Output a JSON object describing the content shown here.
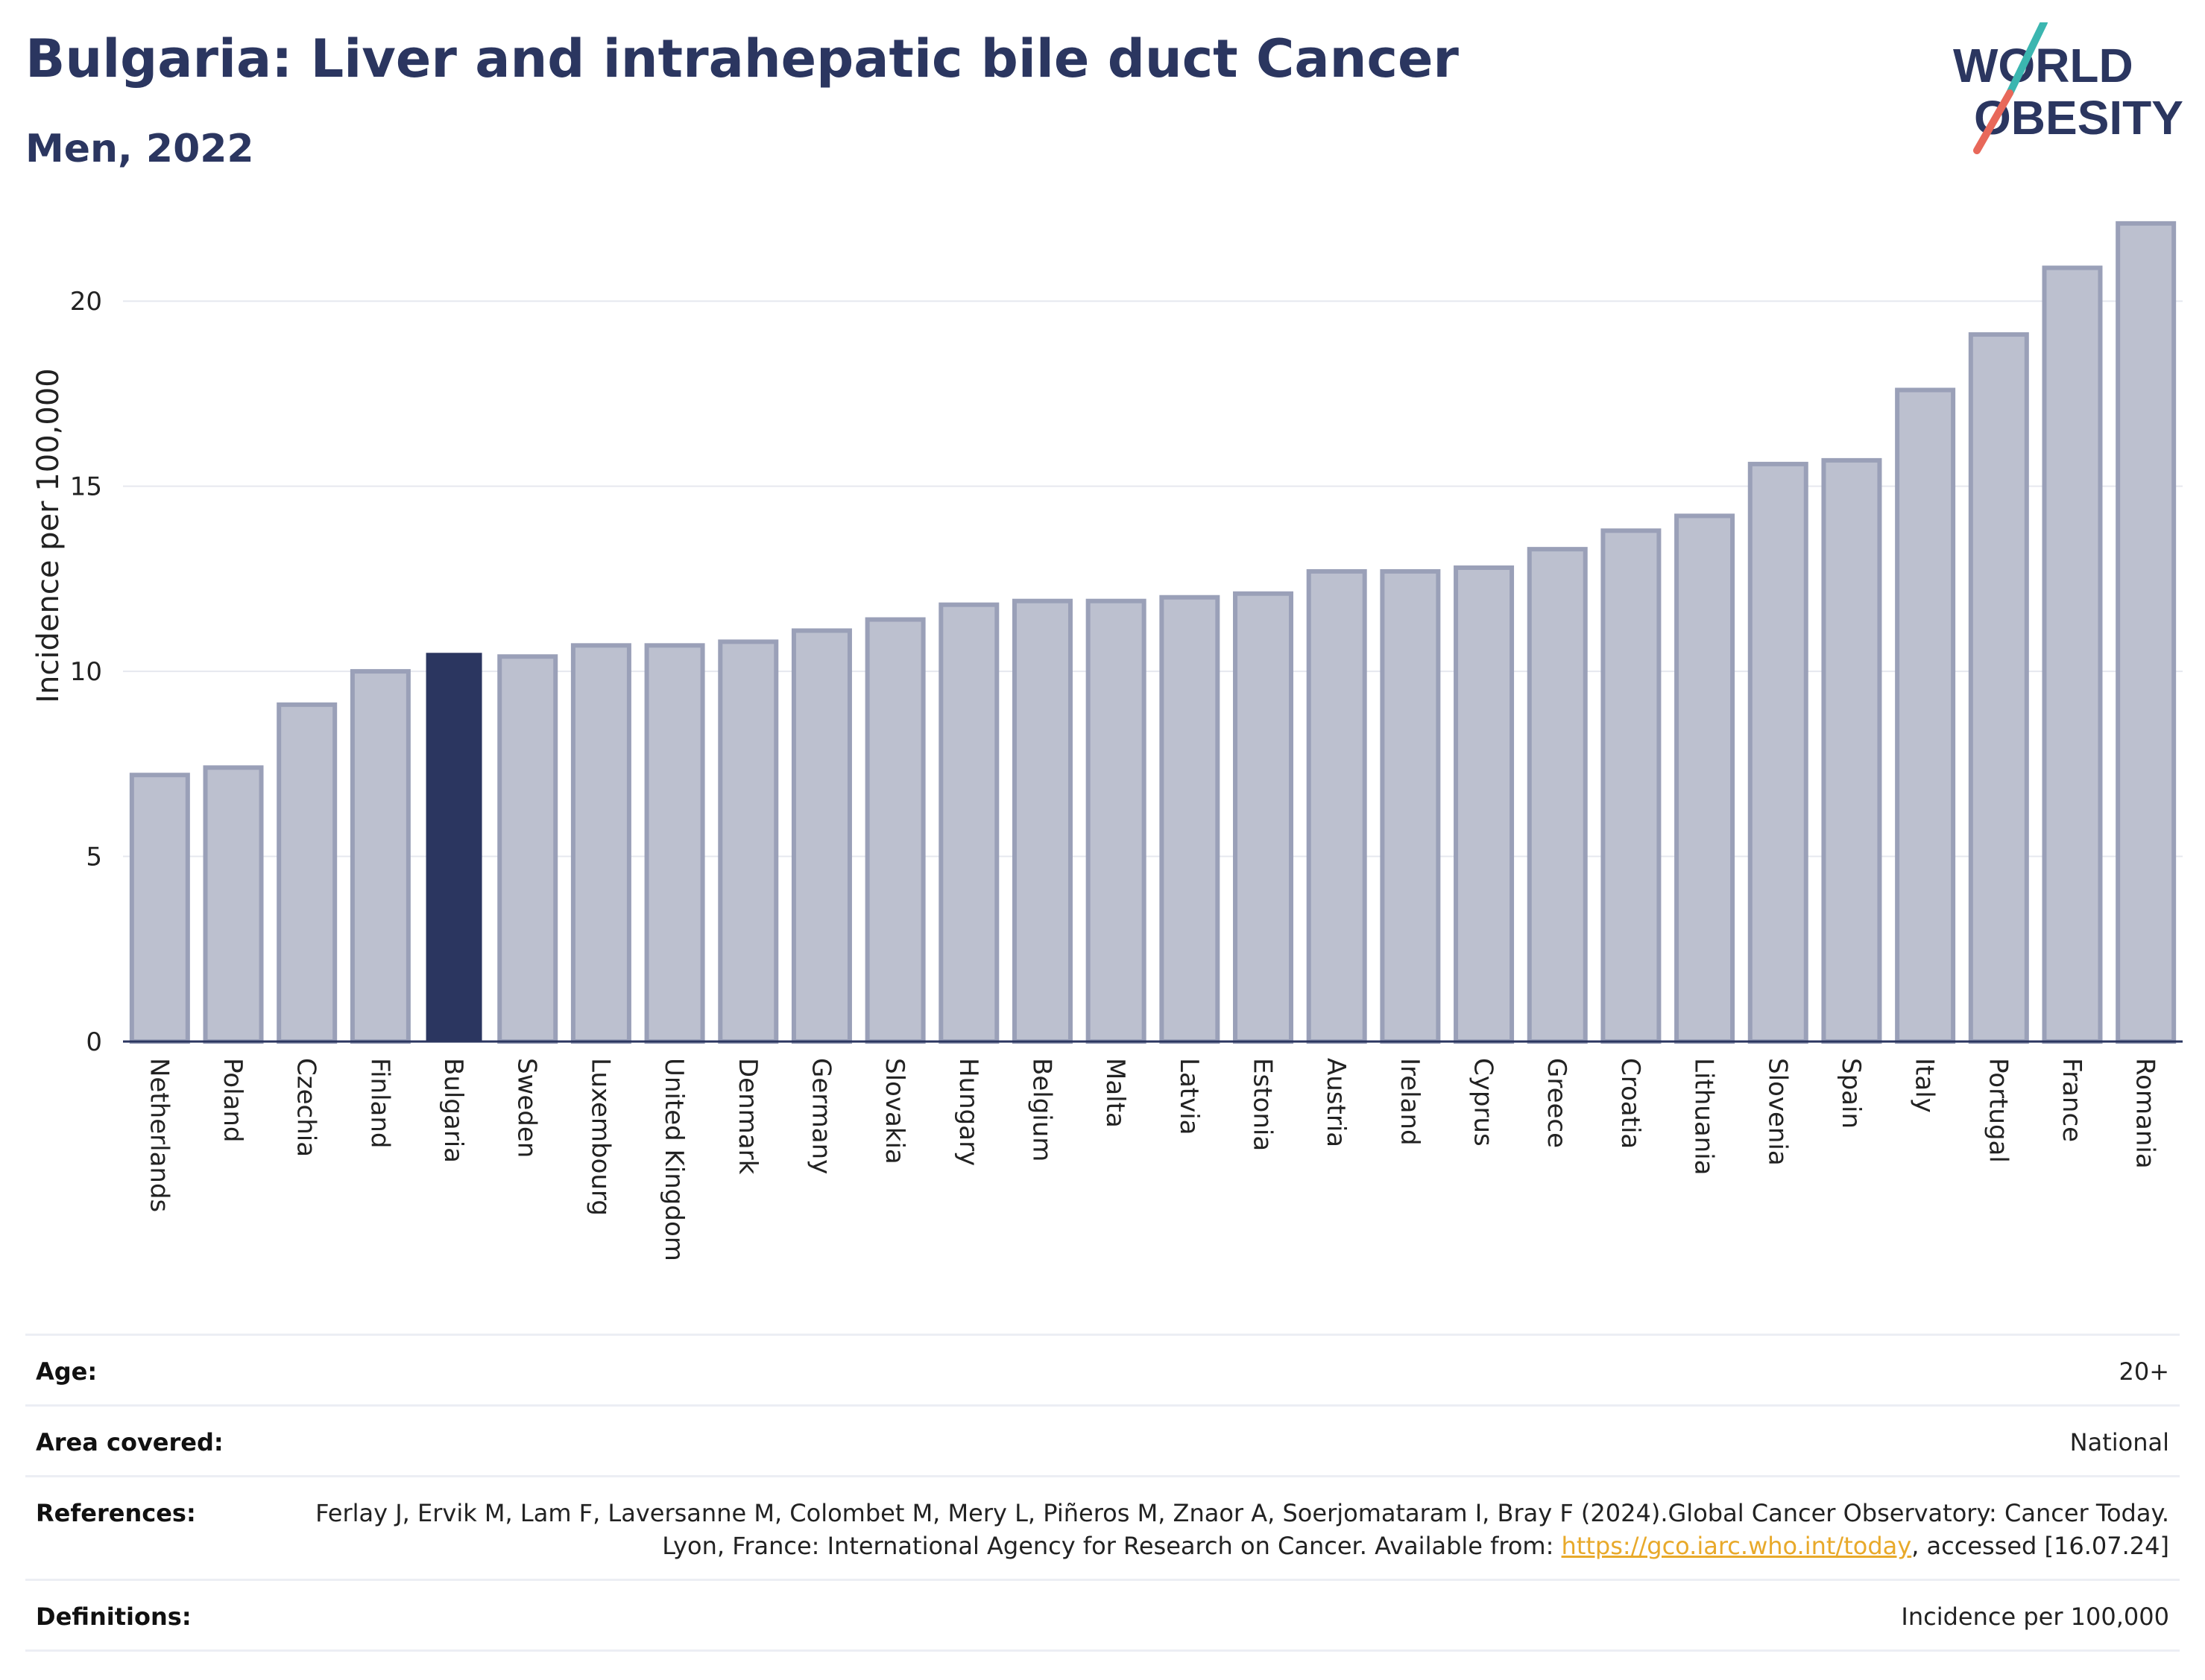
{
  "header": {
    "title": "Bulgaria: Liver and intrahepatic bile duct Cancer",
    "subtitle": "Men, 2022"
  },
  "logo": {
    "line1": "WORLD",
    "line2": "OBESITY",
    "colors": {
      "text": "#2b3660",
      "slash_top": "#3bb6b0",
      "slash_bottom": "#e8685a"
    }
  },
  "chart_data": {
    "type": "bar",
    "ylabel": "Incidence per 100,000",
    "xlabel": "",
    "ylim": [
      0,
      22.5
    ],
    "yticks": [
      0,
      5,
      10,
      15,
      20
    ],
    "grid": true,
    "highlight": "Bulgaria",
    "colors": {
      "highlight": "#2b3660",
      "bar": "#bcc0cf",
      "bar_edge": "#9aa0b8"
    },
    "categories": [
      "Netherlands",
      "Poland",
      "Czechia",
      "Finland",
      "Bulgaria",
      "Sweden",
      "Luxembourg",
      "United Kingdom",
      "Denmark",
      "Germany",
      "Slovakia",
      "Hungary",
      "Belgium",
      "Malta",
      "Latvia",
      "Estonia",
      "Austria",
      "Ireland",
      "Cyprus",
      "Greece",
      "Croatia",
      "Lithuania",
      "Slovenia",
      "Spain",
      "Italy",
      "Portugal",
      "France",
      "Romania"
    ],
    "values": [
      7.2,
      7.4,
      9.1,
      10.0,
      10.5,
      10.4,
      10.7,
      10.7,
      10.8,
      11.1,
      11.4,
      11.8,
      11.9,
      11.9,
      12.0,
      12.1,
      12.7,
      12.7,
      12.8,
      13.3,
      13.8,
      14.2,
      15.6,
      15.7,
      17.6,
      19.1,
      20.9,
      22.1
    ]
  },
  "meta": {
    "age_label": "Age:",
    "age_value": "20+",
    "area_label": "Area covered:",
    "area_value": "National",
    "references_label": "References:",
    "references_text": "Ferlay J, Ervik M, Lam F, Laversanne M, Colombet M, Mery L, Piñeros M, Znaor A, Soerjomataram I, Bray F (2024).Global Cancer Observatory: Cancer Today. Lyon, France: International Agency for Research on Cancer. Available from: ",
    "references_link": "https://gco.iarc.who.int/today",
    "references_suffix": ", accessed [16.07.24]",
    "definitions_label": "Definitions:",
    "definitions_value": "Incidence per 100,000"
  }
}
